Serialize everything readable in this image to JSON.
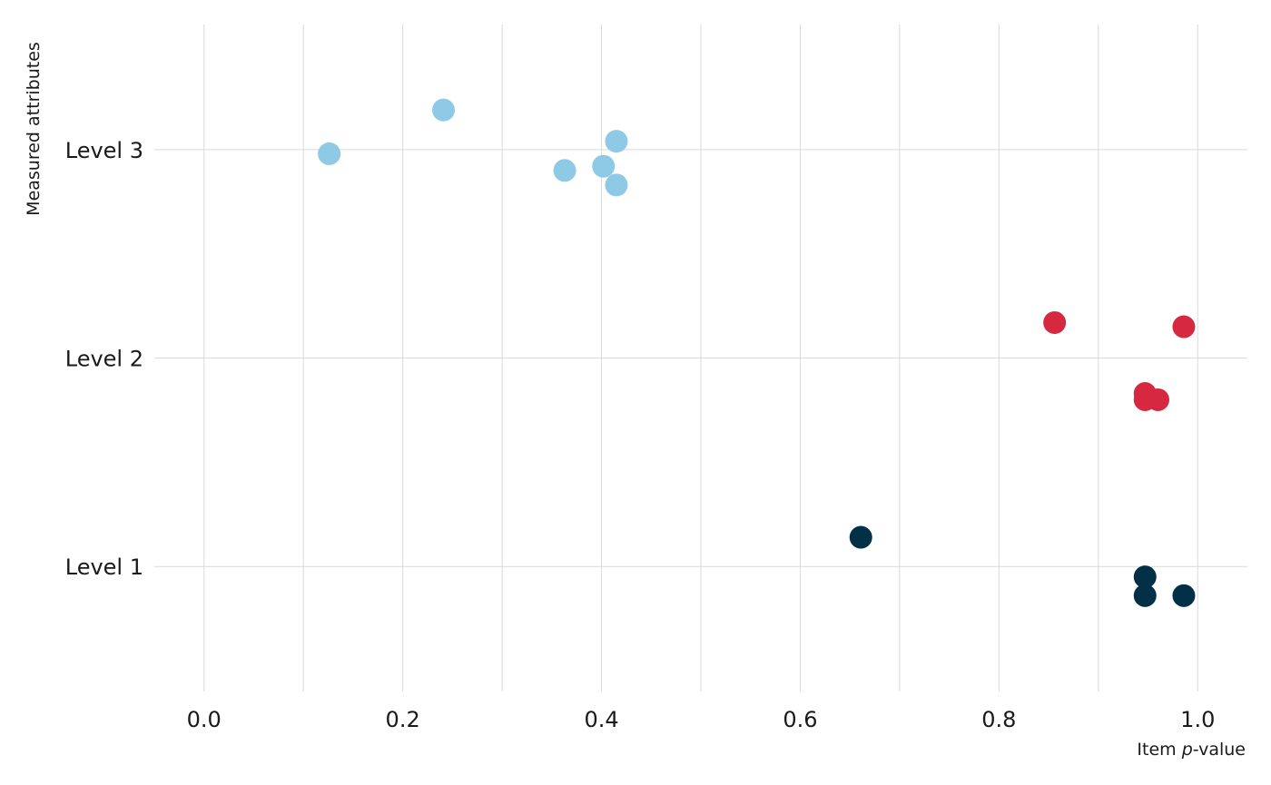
{
  "chart_data": {
    "type": "scatter",
    "title": "",
    "xlabel_prefix": "Item ",
    "xlabel_italic": "p",
    "xlabel_suffix": "-value",
    "ylabel": "Measured attributes",
    "xlim": [
      -0.05,
      1.05
    ],
    "ylim": [
      0.4,
      3.6
    ],
    "x_ticks": [
      0.0,
      0.2,
      0.4,
      0.6,
      0.8,
      1.0
    ],
    "x_tick_labels": [
      "0.0",
      "0.2",
      "0.4",
      "0.6",
      "0.8",
      "1.0"
    ],
    "y_categories": [
      "Level 1",
      "Level 2",
      "Level 3"
    ],
    "grid": true,
    "legend": "none",
    "series": [
      {
        "category": "Level 3",
        "color": "#8ecae6",
        "points": [
          {
            "x": 0.126,
            "y": 2.98
          },
          {
            "x": 0.241,
            "y": 3.19
          },
          {
            "x": 0.363,
            "y": 2.9
          },
          {
            "x": 0.402,
            "y": 2.92
          },
          {
            "x": 0.415,
            "y": 3.04
          },
          {
            "x": 0.415,
            "y": 2.83
          }
        ]
      },
      {
        "category": "Level 2",
        "color": "#d62840",
        "points": [
          {
            "x": 0.856,
            "y": 2.17
          },
          {
            "x": 0.986,
            "y": 2.15
          },
          {
            "x": 0.947,
            "y": 1.83
          },
          {
            "x": 0.947,
            "y": 1.8
          },
          {
            "x": 0.96,
            "y": 1.8
          }
        ]
      },
      {
        "category": "Level 1",
        "color": "#023047",
        "points": [
          {
            "x": 0.661,
            "y": 1.14
          },
          {
            "x": 0.947,
            "y": 0.95
          },
          {
            "x": 0.947,
            "y": 0.86
          },
          {
            "x": 0.986,
            "y": 0.86
          }
        ]
      }
    ]
  }
}
